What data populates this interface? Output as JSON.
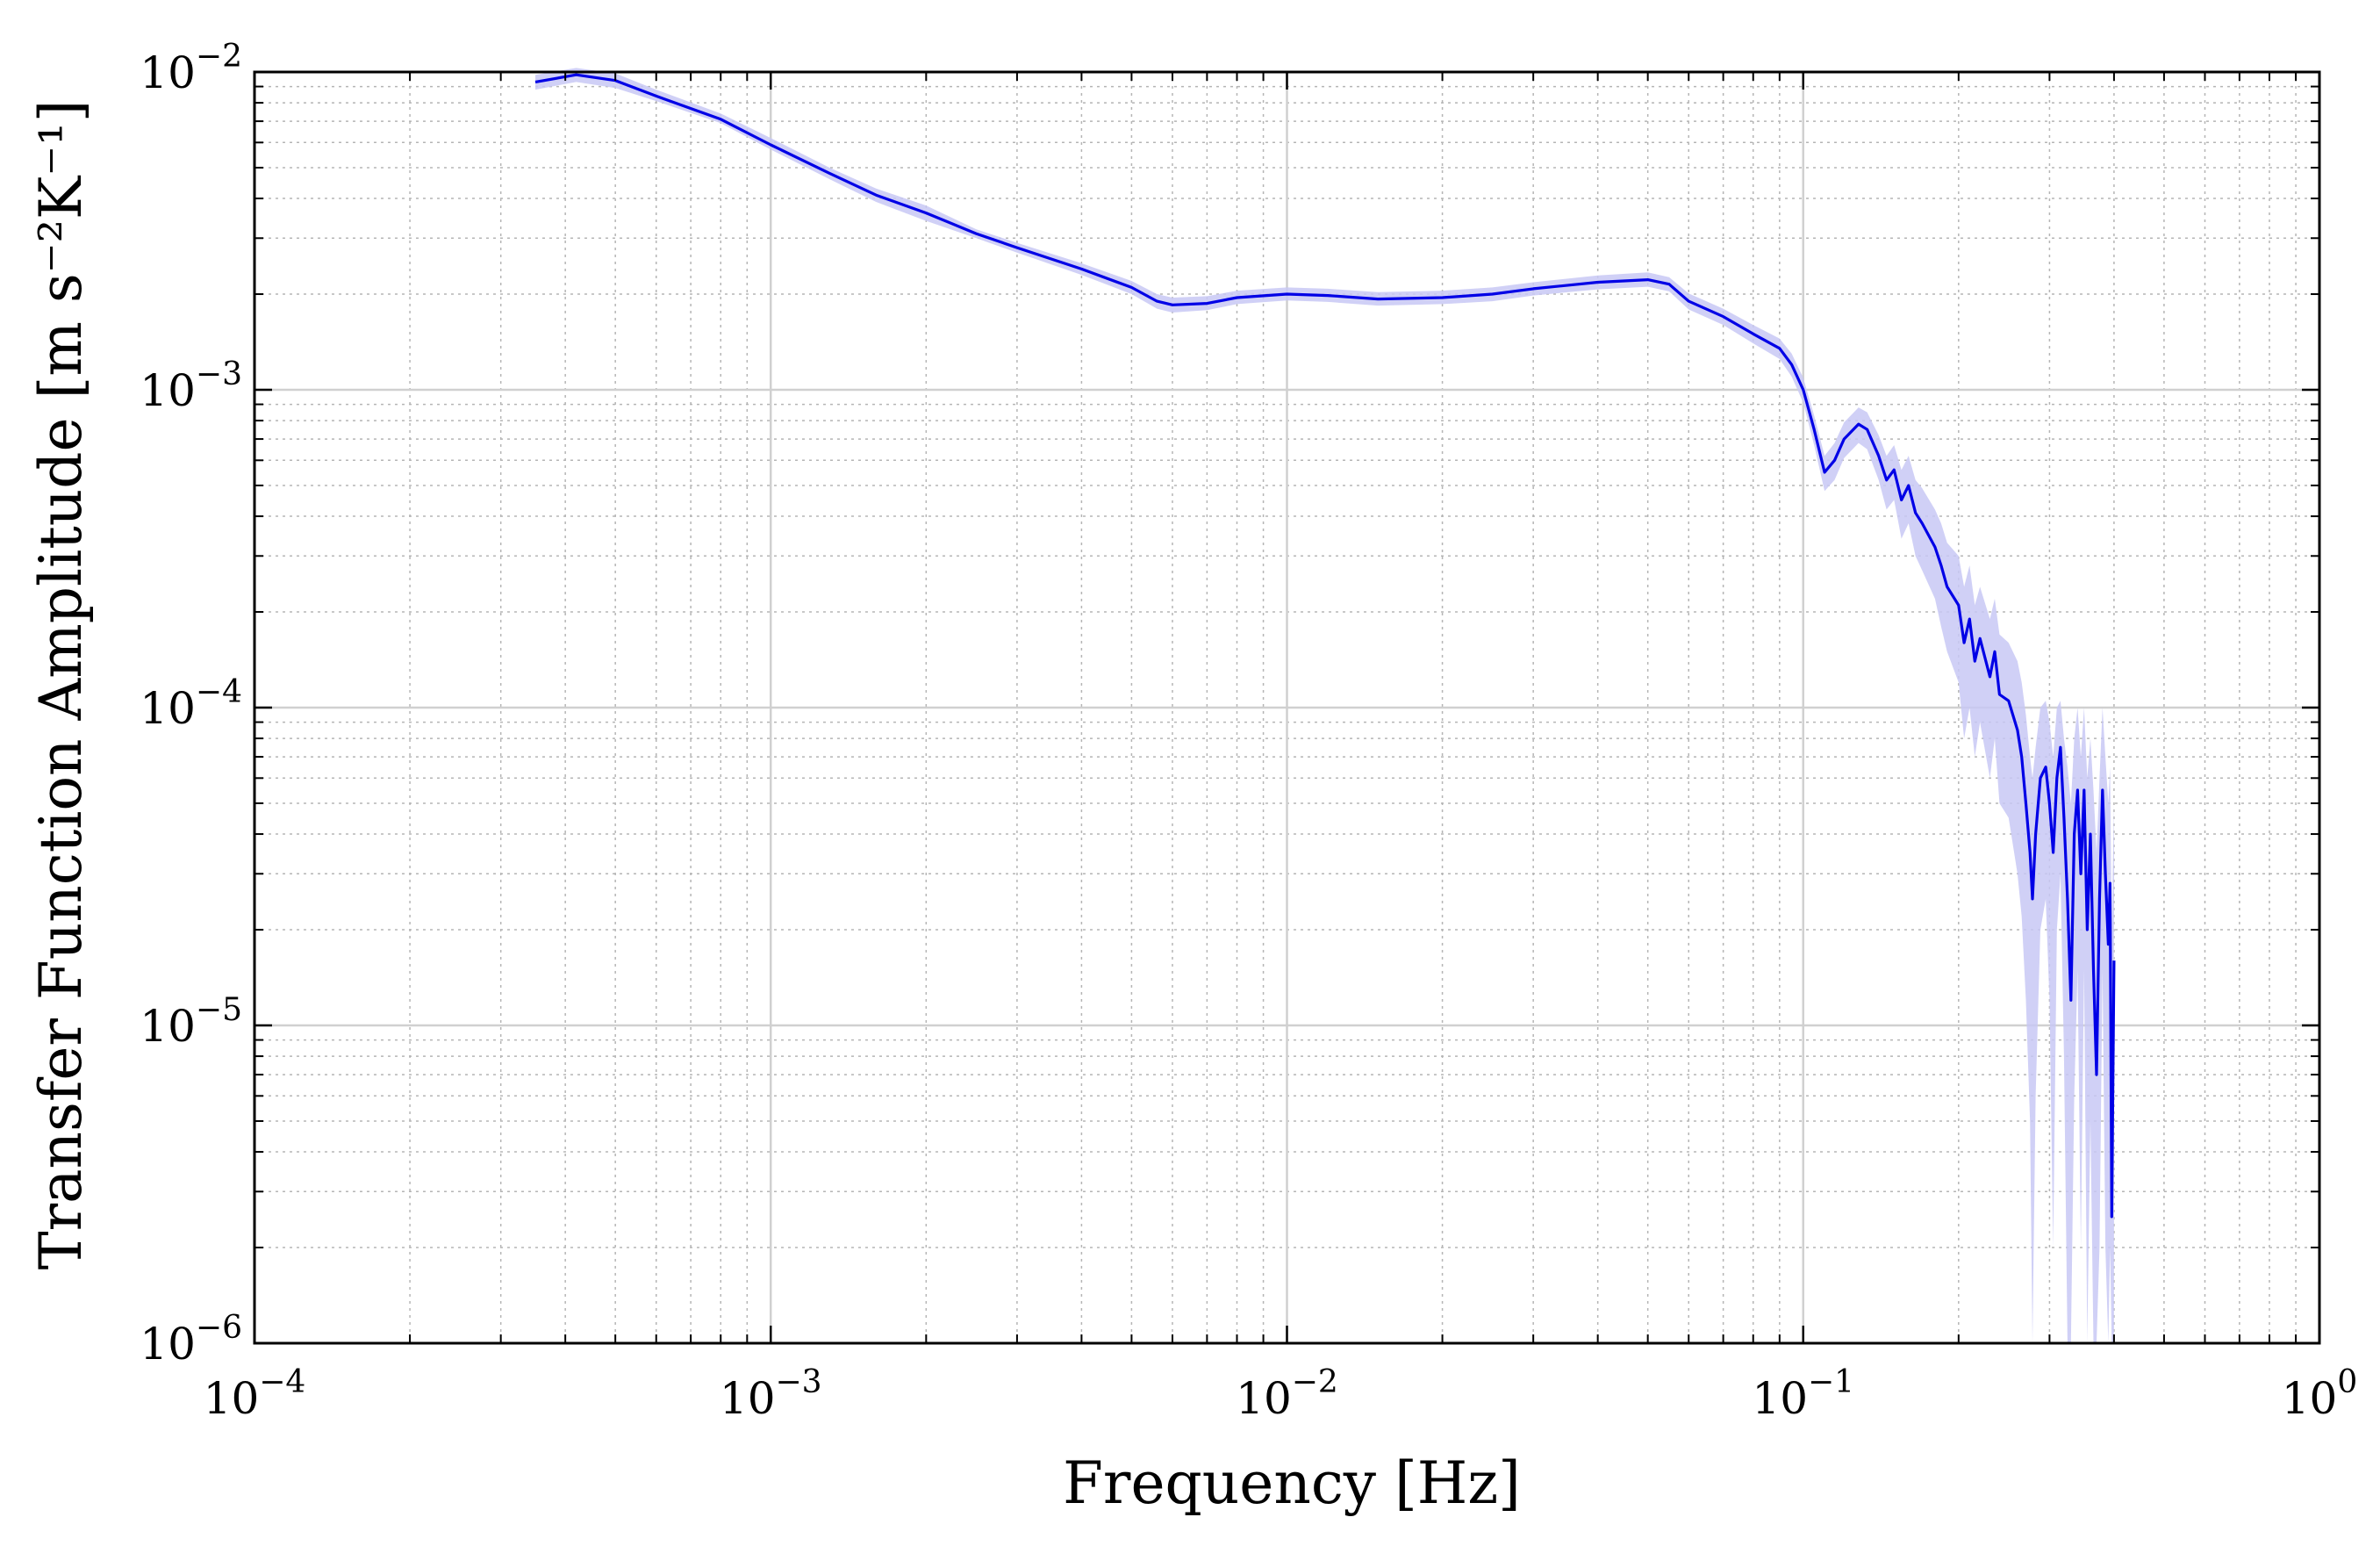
{
  "chart_data": {
    "type": "line",
    "xlabel": "Frequency [Hz]",
    "ylabel": "Transfer Function Amplitude [m s⁻²K⁻¹]",
    "xscale": "log",
    "yscale": "log",
    "xlim": [
      0.0001,
      1
    ],
    "ylim": [
      1e-06,
      0.01
    ],
    "grid": true,
    "x_ticks": [
      {
        "value": 0.0001,
        "base": "10",
        "exp": "−4"
      },
      {
        "value": 0.001,
        "base": "10",
        "exp": "−3"
      },
      {
        "value": 0.01,
        "base": "10",
        "exp": "−2"
      },
      {
        "value": 0.1,
        "base": "10",
        "exp": "−1"
      },
      {
        "value": 1,
        "base": "10",
        "exp": "0"
      }
    ],
    "y_ticks": [
      {
        "value": 1e-06,
        "base": "10",
        "exp": "−6"
      },
      {
        "value": 1e-05,
        "base": "10",
        "exp": "−5"
      },
      {
        "value": 0.0001,
        "base": "10",
        "exp": "−4"
      },
      {
        "value": 0.001,
        "base": "10",
        "exp": "−3"
      },
      {
        "value": 0.01,
        "base": "10",
        "exp": "−2"
      }
    ],
    "colors": {
      "line": "#0000e6",
      "band": "#c8c8f4"
    },
    "series": [
      {
        "points": [
          [
            0.00035,
            0.0093
          ],
          [
            0.00042,
            0.0098
          ],
          [
            0.0005,
            0.0094
          ],
          [
            0.0006,
            0.0084
          ],
          [
            0.0008,
            0.0071
          ],
          [
            0.001,
            0.0059
          ],
          [
            0.0013,
            0.0048
          ],
          [
            0.0016,
            0.0041
          ],
          [
            0.002,
            0.0036
          ],
          [
            0.0025,
            0.0031
          ],
          [
            0.003,
            0.0028
          ],
          [
            0.004,
            0.0024
          ],
          [
            0.005,
            0.0021
          ],
          [
            0.0056,
            0.0019
          ],
          [
            0.006,
            0.00185
          ],
          [
            0.007,
            0.00187
          ],
          [
            0.008,
            0.00195
          ],
          [
            0.01,
            0.002
          ],
          [
            0.012,
            0.00198
          ],
          [
            0.015,
            0.00193
          ],
          [
            0.02,
            0.00195
          ],
          [
            0.025,
            0.002
          ],
          [
            0.03,
            0.00208
          ],
          [
            0.04,
            0.00218
          ],
          [
            0.05,
            0.00222
          ],
          [
            0.055,
            0.00215
          ],
          [
            0.06,
            0.0019
          ],
          [
            0.07,
            0.0017
          ],
          [
            0.08,
            0.0015
          ],
          [
            0.09,
            0.00135
          ],
          [
            0.095,
            0.0012
          ],
          [
            0.1,
            0.001
          ],
          [
            0.105,
            0.00075
          ],
          [
            0.11,
            0.00055
          ],
          [
            0.115,
            0.0006
          ],
          [
            0.12,
            0.0007
          ],
          [
            0.128,
            0.00078
          ],
          [
            0.133,
            0.00075
          ],
          [
            0.14,
            0.00062
          ],
          [
            0.145,
            0.00052
          ],
          [
            0.15,
            0.00056
          ],
          [
            0.155,
            0.00045
          ],
          [
            0.16,
            0.0005
          ],
          [
            0.165,
            0.00041
          ],
          [
            0.17,
            0.00038
          ],
          [
            0.18,
            0.00032
          ],
          [
            0.185,
            0.00028
          ],
          [
            0.19,
            0.00024
          ],
          [
            0.2,
            0.00021
          ],
          [
            0.205,
            0.00016
          ],
          [
            0.21,
            0.00019
          ],
          [
            0.215,
            0.00014
          ],
          [
            0.22,
            0.000165
          ],
          [
            0.23,
            0.000125
          ],
          [
            0.235,
            0.00015
          ],
          [
            0.24,
            0.00011
          ],
          [
            0.25,
            0.000105
          ],
          [
            0.26,
            8.5e-05
          ],
          [
            0.265,
            7e-05
          ],
          [
            0.27,
            5e-05
          ],
          [
            0.275,
            3.5e-05
          ],
          [
            0.278,
            2.5e-05
          ],
          [
            0.282,
            4e-05
          ],
          [
            0.288,
            6e-05
          ],
          [
            0.295,
            6.5e-05
          ],
          [
            0.3,
            5e-05
          ],
          [
            0.305,
            3.5e-05
          ],
          [
            0.31,
            6e-05
          ],
          [
            0.315,
            7.5e-05
          ],
          [
            0.32,
            4.5e-05
          ],
          [
            0.325,
            2.5e-05
          ],
          [
            0.33,
            1.2e-05
          ],
          [
            0.335,
            4e-05
          ],
          [
            0.34,
            5.5e-05
          ],
          [
            0.345,
            3e-05
          ],
          [
            0.35,
            5.5e-05
          ],
          [
            0.355,
            2e-05
          ],
          [
            0.36,
            4e-05
          ],
          [
            0.365,
            1.5e-05
          ],
          [
            0.37,
            7e-06
          ],
          [
            0.375,
            2.5e-05
          ],
          [
            0.38,
            5.5e-05
          ],
          [
            0.385,
            3e-05
          ],
          [
            0.39,
            1.8e-05
          ],
          [
            0.393,
            2.8e-05
          ],
          [
            0.396,
            2.5e-06
          ],
          [
            0.4,
            1.6e-05
          ]
        ],
        "band_lower": [
          0.0088,
          0.0093,
          0.0089,
          0.0081,
          0.0069,
          0.0057,
          0.0046,
          0.0039,
          0.0034,
          0.003,
          0.0027,
          0.0023,
          0.002,
          0.0018,
          0.00175,
          0.00178,
          0.00186,
          0.00191,
          0.00189,
          0.00184,
          0.00186,
          0.0019,
          0.00198,
          0.00207,
          0.00211,
          0.00204,
          0.00179,
          0.0016,
          0.0014,
          0.00125,
          0.0011,
          0.00091,
          0.00067,
          0.00048,
          0.00052,
          0.00061,
          0.00068,
          0.00065,
          0.00052,
          0.00042,
          0.00045,
          0.00034,
          0.00038,
          0.0003,
          0.00027,
          0.00022,
          0.00018,
          0.00015,
          0.00012,
          8e-05,
          0.0001,
          7e-05,
          9e-05,
          6e-05,
          8e-05,
          5e-05,
          4.5e-05,
          3e-05,
          2.2e-05,
          1.2e-05,
          5e-06,
          1e-06,
          6e-06,
          2e-05,
          2.5e-05,
          1.2e-05,
          2e-06,
          2e-05,
          3e-05,
          8e-06,
          1e-06,
          1e-06,
          6e-06,
          1.5e-05,
          2e-06,
          1.5e-05,
          1e-06,
          5e-06,
          1e-06,
          1e-06,
          2e-06,
          1.5e-05,
          2e-06,
          1e-06,
          2e-06,
          1e-06,
          1e-06
        ],
        "band_upper": [
          0.0098,
          0.0103,
          0.0099,
          0.0088,
          0.0074,
          0.0062,
          0.005,
          0.0043,
          0.0038,
          0.0032,
          0.0029,
          0.0025,
          0.0022,
          0.002,
          0.00195,
          0.00197,
          0.00205,
          0.0021,
          0.00208,
          0.00203,
          0.00205,
          0.0021,
          0.00218,
          0.00229,
          0.00234,
          0.00226,
          0.00201,
          0.0018,
          0.0016,
          0.00145,
          0.0013,
          0.00109,
          0.00083,
          0.00062,
          0.00068,
          0.00079,
          0.00088,
          0.00085,
          0.00072,
          0.00062,
          0.00067,
          0.00056,
          0.00062,
          0.00052,
          0.00049,
          0.00042,
          0.00038,
          0.00033,
          0.0003,
          0.00024,
          0.00028,
          0.00021,
          0.00024,
          0.00019,
          0.00022,
          0.00017,
          0.00016,
          0.00014,
          0.00012,
          9.5e-05,
          7e-05,
          6e-05,
          7.5e-05,
          0.0001,
          0.000105,
          9e-05,
          7e-05,
          0.0001,
          0.000105,
          8e-05,
          6.5e-05,
          5e-05,
          8e-05,
          0.0001,
          7e-05,
          0.0001,
          6e-05,
          8e-05,
          5.5e-05,
          3.5e-05,
          6e-05,
          0.0001,
          7e-05,
          5e-05,
          6.5e-05,
          2e-05,
          5e-05
        ]
      }
    ]
  }
}
